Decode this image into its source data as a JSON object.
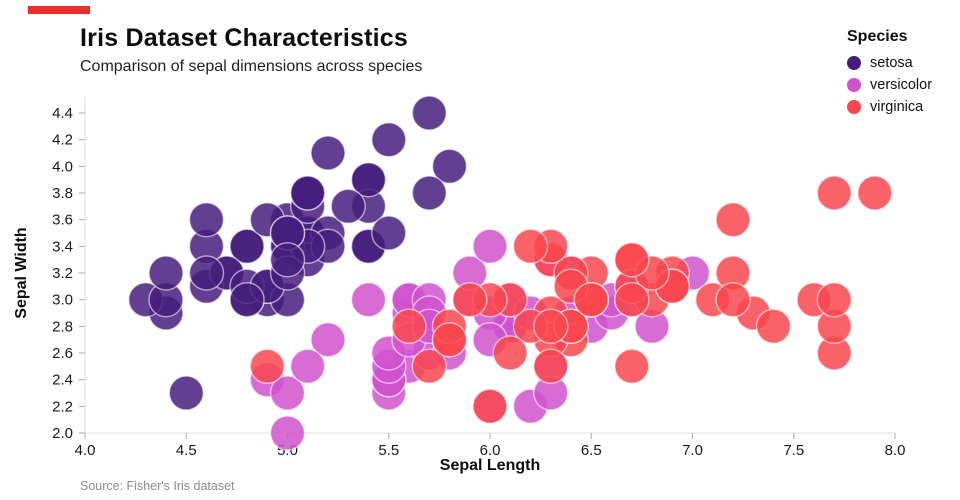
{
  "header": {
    "title": "Iris Dataset Characteristics",
    "subtitle": "Comparison of sepal dimensions across species"
  },
  "source_note": "Source: Fisher's Iris dataset",
  "colors": {
    "accent": "#e8302a",
    "setosa": "#471d7c",
    "versicolor": "#d052ce",
    "virginica": "#f9474f"
  },
  "legend": {
    "title": "Species",
    "items": [
      {
        "label": "setosa",
        "color": "#471d7c"
      },
      {
        "label": "versicolor",
        "color": "#d052ce"
      },
      {
        "label": "virginica",
        "color": "#f9474f"
      }
    ]
  },
  "chart_data": {
    "type": "scatter",
    "title": "Iris Dataset Characteristics",
    "subtitle": "Comparison of sepal dimensions across species",
    "xlabel": "Sepal Length",
    "ylabel": "Sepal Width",
    "xlim": [
      4.0,
      8.0
    ],
    "ylim": [
      2.0,
      4.4
    ],
    "x_ticks": [
      4.0,
      4.5,
      5.0,
      5.5,
      6.0,
      6.5,
      7.0,
      7.5,
      8.0
    ],
    "y_ticks": [
      2.0,
      2.2,
      2.4,
      2.6,
      2.8,
      3.0,
      3.2,
      3.4,
      3.6,
      3.8,
      4.0,
      4.2,
      4.4
    ],
    "grid": false,
    "legend_position": "top-right",
    "marker_radius": 17,
    "marker_opacity": 0.85,
    "series": [
      {
        "name": "setosa",
        "color": "#471d7c",
        "points": [
          [
            5.1,
            3.5
          ],
          [
            4.9,
            3.0
          ],
          [
            4.7,
            3.2
          ],
          [
            4.6,
            3.1
          ],
          [
            5.0,
            3.6
          ],
          [
            5.4,
            3.9
          ],
          [
            4.6,
            3.4
          ],
          [
            5.0,
            3.4
          ],
          [
            4.4,
            2.9
          ],
          [
            4.9,
            3.1
          ],
          [
            5.4,
            3.7
          ],
          [
            4.8,
            3.4
          ],
          [
            4.8,
            3.0
          ],
          [
            4.3,
            3.0
          ],
          [
            5.8,
            4.0
          ],
          [
            5.7,
            4.4
          ],
          [
            5.4,
            3.9
          ],
          [
            5.1,
            3.5
          ],
          [
            5.7,
            3.8
          ],
          [
            5.1,
            3.8
          ],
          [
            5.4,
            3.4
          ],
          [
            5.1,
            3.7
          ],
          [
            4.6,
            3.6
          ],
          [
            5.1,
            3.3
          ],
          [
            4.8,
            3.4
          ],
          [
            5.0,
            3.0
          ],
          [
            5.0,
            3.4
          ],
          [
            5.2,
            3.5
          ],
          [
            5.2,
            3.4
          ],
          [
            4.7,
            3.2
          ],
          [
            4.8,
            3.1
          ],
          [
            5.4,
            3.4
          ],
          [
            5.2,
            4.1
          ],
          [
            5.5,
            4.2
          ],
          [
            4.9,
            3.1
          ],
          [
            5.0,
            3.2
          ],
          [
            5.5,
            3.5
          ],
          [
            4.9,
            3.6
          ],
          [
            4.4,
            3.0
          ],
          [
            5.1,
            3.4
          ],
          [
            5.0,
            3.5
          ],
          [
            4.5,
            2.3
          ],
          [
            4.4,
            3.2
          ],
          [
            5.0,
            3.5
          ],
          [
            5.1,
            3.8
          ],
          [
            4.8,
            3.0
          ],
          [
            5.1,
            3.8
          ],
          [
            4.6,
            3.2
          ],
          [
            5.3,
            3.7
          ],
          [
            5.0,
            3.3
          ]
        ]
      },
      {
        "name": "versicolor",
        "color": "#d052ce",
        "points": [
          [
            7.0,
            3.2
          ],
          [
            6.4,
            3.2
          ],
          [
            6.9,
            3.1
          ],
          [
            5.5,
            2.3
          ],
          [
            6.5,
            2.8
          ],
          [
            5.7,
            2.8
          ],
          [
            6.3,
            3.3
          ],
          [
            4.9,
            2.4
          ],
          [
            6.6,
            2.9
          ],
          [
            5.2,
            2.7
          ],
          [
            5.0,
            2.0
          ],
          [
            5.9,
            3.0
          ],
          [
            6.0,
            2.2
          ],
          [
            6.1,
            2.9
          ],
          [
            5.6,
            2.9
          ],
          [
            6.7,
            3.1
          ],
          [
            5.6,
            3.0
          ],
          [
            5.8,
            2.7
          ],
          [
            6.2,
            2.2
          ],
          [
            5.6,
            2.5
          ],
          [
            5.9,
            3.2
          ],
          [
            6.1,
            2.8
          ],
          [
            6.3,
            2.5
          ],
          [
            6.1,
            2.8
          ],
          [
            6.4,
            2.9
          ],
          [
            6.6,
            3.0
          ],
          [
            6.8,
            2.8
          ],
          [
            6.7,
            3.0
          ],
          [
            6.0,
            2.9
          ],
          [
            5.7,
            2.6
          ],
          [
            5.5,
            2.4
          ],
          [
            5.5,
            2.4
          ],
          [
            5.8,
            2.7
          ],
          [
            6.0,
            2.7
          ],
          [
            5.4,
            3.0
          ],
          [
            6.0,
            3.4
          ],
          [
            6.7,
            3.1
          ],
          [
            6.3,
            2.3
          ],
          [
            5.6,
            3.0
          ],
          [
            5.5,
            2.5
          ],
          [
            5.5,
            2.6
          ],
          [
            6.1,
            3.0
          ],
          [
            5.8,
            2.6
          ],
          [
            5.0,
            2.3
          ],
          [
            5.6,
            2.7
          ],
          [
            5.7,
            3.0
          ],
          [
            5.7,
            2.9
          ],
          [
            6.2,
            2.9
          ],
          [
            5.1,
            2.5
          ],
          [
            5.7,
            2.8
          ]
        ]
      },
      {
        "name": "virginica",
        "color": "#f9474f",
        "points": [
          [
            6.3,
            3.3
          ],
          [
            5.8,
            2.7
          ],
          [
            7.1,
            3.0
          ],
          [
            6.3,
            2.9
          ],
          [
            6.5,
            3.0
          ],
          [
            7.6,
            3.0
          ],
          [
            4.9,
            2.5
          ],
          [
            7.3,
            2.9
          ],
          [
            6.7,
            2.5
          ],
          [
            7.2,
            3.6
          ],
          [
            6.5,
            3.2
          ],
          [
            6.4,
            2.7
          ],
          [
            6.8,
            3.0
          ],
          [
            5.7,
            2.5
          ],
          [
            5.8,
            2.8
          ],
          [
            6.4,
            3.2
          ],
          [
            6.5,
            3.0
          ],
          [
            7.7,
            3.8
          ],
          [
            7.7,
            2.6
          ],
          [
            6.0,
            2.2
          ],
          [
            6.9,
            3.2
          ],
          [
            5.6,
            2.8
          ],
          [
            7.7,
            2.8
          ],
          [
            6.3,
            2.7
          ],
          [
            6.7,
            3.3
          ],
          [
            7.2,
            3.2
          ],
          [
            6.2,
            2.8
          ],
          [
            6.1,
            3.0
          ],
          [
            6.4,
            2.8
          ],
          [
            7.2,
            3.0
          ],
          [
            7.4,
            2.8
          ],
          [
            7.9,
            3.8
          ],
          [
            6.4,
            2.8
          ],
          [
            6.3,
            2.8
          ],
          [
            6.1,
            2.6
          ],
          [
            7.7,
            3.0
          ],
          [
            6.3,
            3.4
          ],
          [
            6.4,
            3.1
          ],
          [
            6.0,
            3.0
          ],
          [
            6.9,
            3.1
          ],
          [
            6.7,
            3.1
          ],
          [
            6.9,
            3.1
          ],
          [
            5.8,
            2.7
          ],
          [
            6.8,
            3.2
          ],
          [
            6.7,
            3.3
          ],
          [
            6.7,
            3.0
          ],
          [
            6.3,
            2.5
          ],
          [
            6.5,
            3.0
          ],
          [
            6.2,
            3.4
          ],
          [
            5.9,
            3.0
          ]
        ]
      }
    ]
  }
}
